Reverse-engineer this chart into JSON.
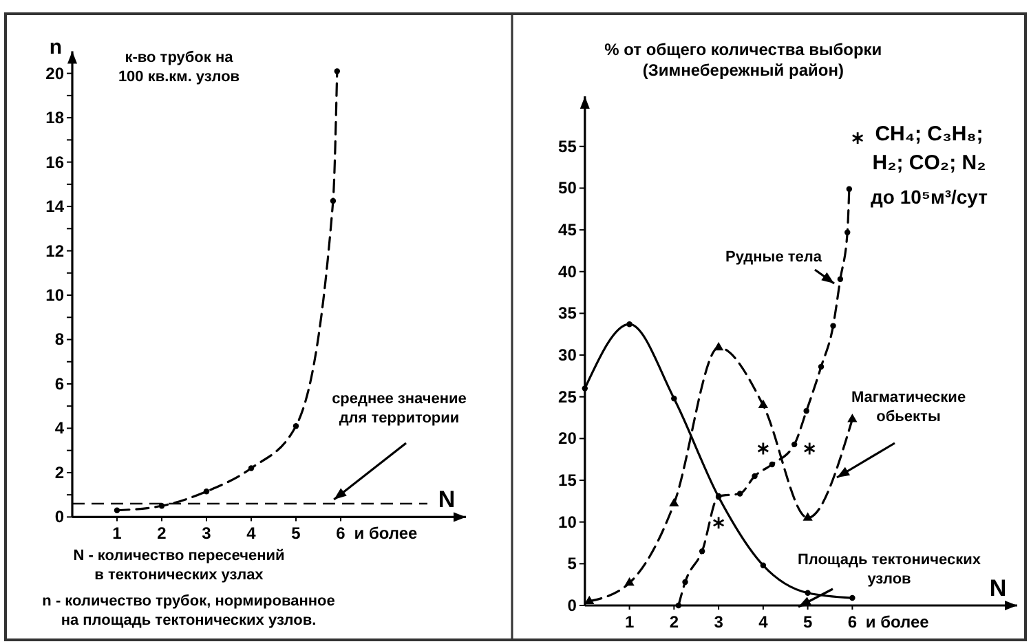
{
  "chart_data": [
    {
      "type": "line",
      "xlabel": "N",
      "ylabel": "n",
      "xlim": [
        0,
        8.8
      ],
      "ylim": [
        0,
        21
      ],
      "xticks": [
        1,
        2,
        3,
        4,
        5,
        6
      ],
      "yticks": [
        0,
        {
          "value": 1,
          "label": null
        },
        2,
        {
          "value": 3,
          "label": null
        },
        4,
        {
          "value": 5,
          "label": null
        },
        6,
        {
          "value": 7,
          "label": null
        },
        8,
        {
          "value": 9,
          "label": null
        },
        10,
        {
          "value": 11,
          "label": null
        },
        12,
        {
          "value": 13,
          "label": null
        },
        14,
        {
          "value": 15,
          "label": null
        },
        16,
        {
          "value": 17,
          "label": null
        },
        18,
        {
          "value": 19,
          "label": null
        },
        20
      ],
      "marker": "circle",
      "line_style": "dashed",
      "ref_lines": [
        {
          "axis": "y",
          "value": 0.6,
          "label": "среднее значение для территории",
          "line_style": "dashed"
        }
      ],
      "annotations": [
        "к-во трубок на 100 кв.км. узлов",
        "и более",
        "N - количество пересечений в тектонических узлах",
        "n - количество трубок, нормированное на площадь тектонических узлов."
      ],
      "series": [
        {
          "color": "#000000",
          "x": [
            1,
            2,
            3,
            4,
            5,
            5.83,
            5.92
          ],
          "values": [
            0.3,
            0.5,
            1.15,
            2.2,
            4.1,
            14.25,
            20.1
          ]
        }
      ]
    },
    {
      "type": "line",
      "xlabel": "N",
      "ylabel": "% от общего количества выборки (Зимнебережный район)",
      "xlim": [
        0,
        9.7
      ],
      "ylim": [
        0,
        61
      ],
      "xticks": [
        1,
        2,
        3,
        4,
        5,
        6
      ],
      "yticks": [
        0,
        5,
        10,
        15,
        20,
        25,
        30,
        35,
        40,
        45,
        50,
        55
      ],
      "annotations": [
        "и более",
        "CH₄; C₃H₈; H₂; CO₂; N₂",
        "до 10⁵м³/сут"
      ],
      "series": [
        {
          "name": "Рудные тела",
          "color": "#000000",
          "marker": "circle",
          "line_style": "dashed",
          "x": [
            2.1,
            2.25,
            2.63,
            3,
            3.48,
            3.81,
            4.2,
            4.7,
            4.97,
            5.3,
            5.57,
            5.73,
            5.89,
            5.93
          ],
          "values": [
            0,
            2.8,
            6.5,
            13.1,
            13.4,
            15.5,
            16.9,
            19.3,
            23.3,
            28.6,
            33.5,
            39.1,
            44.7,
            49.9
          ]
        },
        {
          "name": "Магматические обьекты",
          "color": "#000000",
          "marker": "triangle",
          "line_style": "dashed",
          "x": [
            0.1,
            1,
            2,
            3,
            4,
            5,
            6
          ],
          "values": [
            0.5,
            2.7,
            12.2,
            30.9,
            24,
            10.5,
            22.3
          ]
        },
        {
          "name": "Площадь тектонических узлов",
          "color": "#000000",
          "marker": "circle",
          "line_style": "solid",
          "x": [
            0,
            1,
            2,
            3,
            4,
            5,
            6
          ],
          "values": [
            26,
            33.7,
            24.8,
            13,
            4.8,
            1.5,
            0.9
          ]
        },
        {
          "type": "scatter",
          "color": "#000000",
          "marker": "cross",
          "x": [
            3,
            4,
            5.04,
            6.12
          ],
          "values": [
            9.9,
            18.8,
            18.8,
            56
          ]
        }
      ]
    }
  ]
}
